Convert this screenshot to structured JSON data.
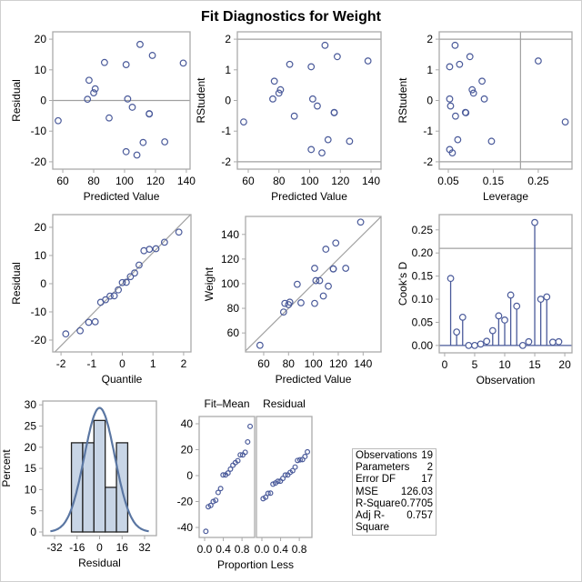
{
  "title": "Fit Diagnostics for Weight",
  "colors": {
    "marker": "#4a5a9a",
    "reference": "#a0a0a0",
    "frame": "#aaaaaa",
    "hist_fill": "#c8d5e6",
    "curve": "#5a76a2"
  },
  "stats": [
    {
      "label": "Observations",
      "value": "19"
    },
    {
      "label": "Parameters",
      "value": "2"
    },
    {
      "label": "Error DF",
      "value": "17"
    },
    {
      "label": "MSE",
      "value": "126.03"
    },
    {
      "label": "R-Square",
      "value": "0.7705"
    },
    {
      "label": "Adj R-Square",
      "value": "0.757"
    }
  ],
  "chart_data": [
    {
      "id": "resid_pred",
      "type": "scatter",
      "xlabel": "Predicted Value",
      "ylabel": "Residual",
      "xticks": [
        "60",
        "80",
        "100",
        "120",
        "140"
      ],
      "yticks": [
        "-20",
        "-10",
        "0",
        "10",
        "20"
      ],
      "hlines": [
        0
      ],
      "points": [
        [
          57,
          -6.6
        ],
        [
          76,
          0.4
        ],
        [
          77,
          6.6
        ],
        [
          80,
          2.5
        ],
        [
          81,
          3.8
        ],
        [
          87,
          12.4
        ],
        [
          90,
          -5.7
        ],
        [
          101,
          11.7
        ],
        [
          101,
          -16.7
        ],
        [
          102,
          0.5
        ],
        [
          105,
          -2.2
        ],
        [
          108,
          -17.8
        ],
        [
          110,
          18.3
        ],
        [
          112,
          -13.7
        ],
        [
          116,
          -4.3
        ],
        [
          116,
          -4.4
        ],
        [
          118,
          14.7
        ],
        [
          126,
          -13.5
        ],
        [
          138,
          12.2
        ]
      ]
    },
    {
      "id": "rstudent_pred",
      "type": "scatter",
      "xlabel": "Predicted Value",
      "ylabel": "RStudent",
      "xticks": [
        "60",
        "80",
        "100",
        "120",
        "140"
      ],
      "yticks": [
        "-2",
        "-1",
        "0",
        "1",
        "2"
      ],
      "hlines": [
        -2,
        2
      ],
      "points": [
        [
          57,
          -0.7
        ],
        [
          76,
          0.05
        ],
        [
          77,
          0.63
        ],
        [
          80,
          0.24
        ],
        [
          81,
          0.35
        ],
        [
          87,
          1.18
        ],
        [
          90,
          -0.51
        ],
        [
          101,
          1.1
        ],
        [
          101,
          -1.6
        ],
        [
          102,
          0.05
        ],
        [
          105,
          -0.18
        ],
        [
          108,
          -1.71
        ],
        [
          110,
          1.8
        ],
        [
          112,
          -1.28
        ],
        [
          116,
          -0.39
        ],
        [
          116,
          -0.4
        ],
        [
          118,
          1.43
        ],
        [
          126,
          -1.33
        ],
        [
          138,
          1.29
        ]
      ]
    },
    {
      "id": "rstudent_lev",
      "type": "scatter",
      "xlabel": "Leverage",
      "ylabel": "RStudent",
      "xticks": [
        "0.05",
        "0.15",
        "0.25"
      ],
      "yticks": [
        "-2",
        "-1",
        "0",
        "1",
        "2"
      ],
      "hlines": [
        -2,
        2
      ],
      "vlines": [
        0.2105
      ],
      "points": [
        [
          0.31,
          -0.7
        ],
        [
          0.13,
          0.05
        ],
        [
          0.125,
          0.63
        ],
        [
          0.106,
          0.24
        ],
        [
          0.103,
          0.35
        ],
        [
          0.075,
          1.18
        ],
        [
          0.066,
          -0.51
        ],
        [
          0.053,
          1.1
        ],
        [
          0.053,
          -1.6
        ],
        [
          0.053,
          0.05
        ],
        [
          0.055,
          -0.18
        ],
        [
          0.059,
          -1.71
        ],
        [
          0.065,
          1.8
        ],
        [
          0.071,
          -1.28
        ],
        [
          0.088,
          -0.39
        ],
        [
          0.089,
          -0.4
        ],
        [
          0.098,
          1.43
        ],
        [
          0.146,
          -1.33
        ],
        [
          0.25,
          1.29
        ]
      ]
    },
    {
      "id": "qq",
      "type": "scatter",
      "xlabel": "Quantile",
      "ylabel": "Residual",
      "xticks": [
        "-2",
        "-1",
        "0",
        "1",
        "2"
      ],
      "yticks": [
        "-20",
        "-10",
        "0",
        "10",
        "20"
      ],
      "refline": {
        "intercept": 0,
        "slope": 11.0
      },
      "points": [
        [
          -1.845,
          -17.8
        ],
        [
          -1.376,
          -16.7
        ],
        [
          -1.097,
          -13.7
        ],
        [
          -0.884,
          -13.5
        ],
        [
          -0.705,
          -6.6
        ],
        [
          -0.547,
          -5.7
        ],
        [
          -0.401,
          -4.4
        ],
        [
          -0.264,
          -4.3
        ],
        [
          -0.13,
          -2.2
        ],
        [
          0,
          0.4
        ],
        [
          0.13,
          0.5
        ],
        [
          0.264,
          2.5
        ],
        [
          0.401,
          3.8
        ],
        [
          0.547,
          6.6
        ],
        [
          0.705,
          11.7
        ],
        [
          0.884,
          12.2
        ],
        [
          1.097,
          12.4
        ],
        [
          1.376,
          14.7
        ],
        [
          1.845,
          18.3
        ]
      ]
    },
    {
      "id": "obs_pred",
      "type": "scatter",
      "xlabel": "Predicted Value",
      "ylabel": "Weight",
      "xticks": [
        "60",
        "80",
        "100",
        "120",
        "140"
      ],
      "yticks": [
        "60",
        "80",
        "100",
        "120",
        "140"
      ],
      "refline": {
        "intercept": 0,
        "slope": 1
      },
      "points": [
        [
          57,
          50
        ],
        [
          76,
          77
        ],
        [
          77,
          84
        ],
        [
          80,
          83
        ],
        [
          81,
          85
        ],
        [
          87,
          99.5
        ],
        [
          90,
          84.5
        ],
        [
          101,
          112.5
        ],
        [
          101,
          84
        ],
        [
          102,
          102.5
        ],
        [
          105,
          102.5
        ],
        [
          108,
          90
        ],
        [
          110,
          128
        ],
        [
          112,
          98
        ],
        [
          116,
          112
        ],
        [
          116,
          112
        ],
        [
          118,
          133
        ],
        [
          126,
          112.5
        ],
        [
          138,
          150
        ]
      ]
    },
    {
      "id": "cooks",
      "type": "needle",
      "xlabel": "Observation",
      "ylabel": "Cook's D",
      "xticks": [
        "0",
        "5",
        "10",
        "15",
        "20"
      ],
      "yticks": [
        "0.00",
        "0.05",
        "0.10",
        "0.15",
        "0.20",
        "0.25"
      ],
      "hlines": [
        0.21
      ],
      "x": [
        1,
        2,
        3,
        4,
        5,
        6,
        7,
        8,
        9,
        10,
        11,
        12,
        13,
        14,
        15,
        16,
        17,
        18,
        19
      ],
      "values": [
        0.145,
        0.029,
        0.061,
        0.0,
        0.0,
        0.003,
        0.009,
        0.032,
        0.064,
        0.055,
        0.109,
        0.085,
        0.0,
        0.008,
        0.266,
        0.1,
        0.105,
        0.007,
        0.008
      ]
    },
    {
      "id": "hist",
      "type": "bar",
      "xlabel": "Residual",
      "ylabel": "Percent",
      "xticks": [
        "-32",
        "-16",
        "0",
        "16",
        "32"
      ],
      "yticks": [
        "0",
        "5",
        "10",
        "15",
        "20",
        "25",
        "30"
      ],
      "bin_edges": [
        -20,
        -12,
        -4,
        4,
        12,
        20
      ],
      "values": [
        21.05,
        21.05,
        26.32,
        10.53,
        21.05
      ],
      "normal_curve": {
        "mu": 0,
        "sigma": 10.9
      }
    },
    {
      "id": "spread_fit",
      "type": "scatter",
      "panel_title": "Fit–Mean",
      "xlabel": "Proportion Less",
      "ylabel": "",
      "xticks": [
        "0.0",
        "0.4",
        "0.8"
      ],
      "yticks": [
        "-40",
        "-20",
        "0",
        "20",
        "40"
      ],
      "values": [
        -43,
        -24,
        -23,
        -20,
        -19,
        -13,
        -10,
        0.5,
        0.5,
        2,
        5,
        8,
        10,
        11.5,
        16,
        16,
        18,
        26,
        38
      ]
    },
    {
      "id": "spread_res",
      "type": "scatter",
      "panel_title": "Residual",
      "xlabel": "",
      "ylabel": "",
      "xticks": [
        "0.0",
        "0.4",
        "0.8"
      ],
      "yticks": [],
      "values": [
        -17.8,
        -16.7,
        -13.7,
        -13.5,
        -6.6,
        -5.7,
        -4.4,
        -4.3,
        -2.2,
        0.4,
        0.5,
        2.5,
        3.8,
        6.6,
        11.7,
        12.2,
        12.4,
        14.7,
        18.3
      ]
    }
  ]
}
